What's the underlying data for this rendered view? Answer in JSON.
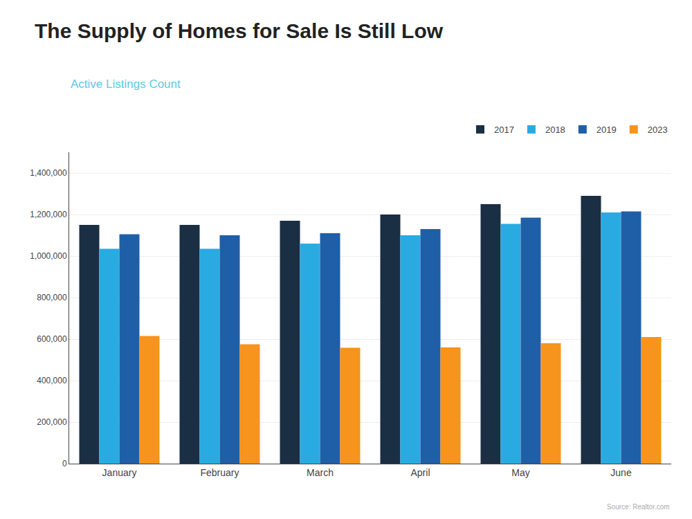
{
  "chart_data": {
    "type": "bar",
    "title": "The Supply of Homes for Sale Is Still Low",
    "subtitle": "Active Listings Count",
    "source": "Source: Realtor.com",
    "categories": [
      "January",
      "February",
      "March",
      "April",
      "May",
      "June"
    ],
    "series": [
      {
        "name": "2017",
        "color": "#1a2e44",
        "values": [
          1150000,
          1150000,
          1170000,
          1200000,
          1250000,
          1290000
        ]
      },
      {
        "name": "2018",
        "color": "#29abe2",
        "values": [
          1035000,
          1035000,
          1060000,
          1100000,
          1155000,
          1210000
        ]
      },
      {
        "name": "2019",
        "color": "#1e5fa8",
        "values": [
          1105000,
          1100000,
          1110000,
          1130000,
          1185000,
          1215000
        ]
      },
      {
        "name": "2023",
        "color": "#f7941d",
        "values": [
          615000,
          575000,
          558000,
          560000,
          580000,
          610000
        ]
      }
    ],
    "ylim": [
      0,
      1500000
    ],
    "yticks": [
      0,
      {
        "value": 200000,
        "label": "200,000"
      },
      {
        "value": 400000,
        "label": "400,000"
      },
      {
        "value": 600000,
        "label": "600,000"
      },
      {
        "value": 800000,
        "label": "800,000"
      },
      {
        "value": 1000000,
        "label": "1,000,000"
      },
      {
        "value": 1200000,
        "label": "1,200,000"
      },
      {
        "value": 1400000,
        "label": "1,400,000"
      }
    ],
    "grid": true,
    "legend": "upper right"
  }
}
